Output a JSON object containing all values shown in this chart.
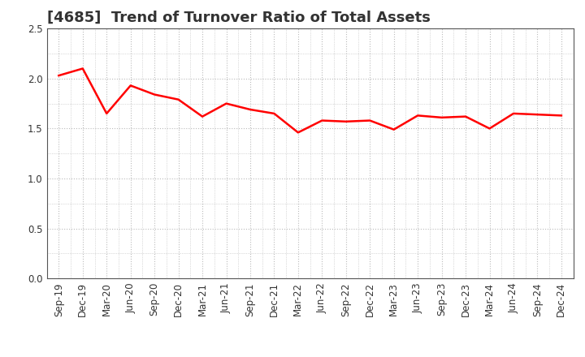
{
  "title": "[4685]  Trend of Turnover Ratio of Total Assets",
  "x_labels": [
    "Sep-19",
    "Dec-19",
    "Mar-20",
    "Jun-20",
    "Sep-20",
    "Dec-20",
    "Mar-21",
    "Jun-21",
    "Sep-21",
    "Dec-21",
    "Mar-22",
    "Jun-22",
    "Sep-22",
    "Dec-22",
    "Mar-23",
    "Jun-23",
    "Sep-23",
    "Dec-23",
    "Mar-24",
    "Jun-24",
    "Sep-24",
    "Dec-24"
  ],
  "y_values": [
    2.03,
    2.1,
    1.65,
    1.93,
    1.84,
    1.79,
    1.62,
    1.75,
    1.69,
    1.65,
    1.46,
    1.58,
    1.57,
    1.58,
    1.49,
    1.63,
    1.61,
    1.62,
    1.5,
    1.65,
    1.64,
    1.63
  ],
  "line_color": "#ff0000",
  "line_width": 1.8,
  "ylim": [
    0.0,
    2.5
  ],
  "yticks": [
    0.0,
    0.5,
    1.0,
    1.5,
    2.0,
    2.5
  ],
  "grid_color": "#bbbbbb",
  "background_color": "#ffffff",
  "title_fontsize": 13,
  "tick_fontsize": 8.5,
  "title_color": "#333333",
  "title_fontweight": "bold"
}
